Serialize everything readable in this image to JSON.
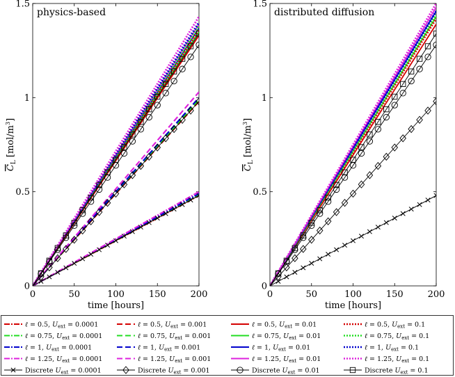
{
  "chart_data": {
    "type": "line",
    "x_range": [
      0,
      200
    ],
    "y_range": [
      0,
      1.5
    ],
    "x_ticks": [
      0,
      50,
      100,
      150,
      200
    ],
    "y_ticks": [
      0,
      0.5,
      1,
      1.5
    ],
    "x_tick_labels": [
      "0",
      "50",
      "100",
      "150",
      "200"
    ],
    "y_tick_labels": [
      "0",
      "0.5",
      "1",
      "1.5"
    ],
    "xlabel": "time [hours]",
    "ylabel_main": "C",
    "ylabel_sub": "L",
    "ylabel_unit_pre": " [mol/m",
    "ylabel_unit_sup": "3",
    "ylabel_unit_post": "]",
    "panels": [
      {
        "title": "physics-based",
        "final_values": {
          "0.0001": [
            0.48,
            0.485,
            0.49,
            0.5
          ],
          "0.001": [
            0.98,
            0.99,
            1.0,
            1.03
          ],
          "0.01": [
            1.33,
            1.35,
            1.37,
            1.39
          ],
          "0.1": [
            1.36,
            1.38,
            1.4,
            1.43
          ]
        },
        "discrete_final": {
          "0.0001": 0.48,
          "0.001": 0.98,
          "0.01": 1.28,
          "0.1": 1.34
        }
      },
      {
        "title": "distributed diffusion",
        "final_values": {
          "0.01": [
            1.39,
            1.43,
            1.46,
            1.48
          ],
          "0.1": [
            1.42,
            1.44,
            1.46,
            1.5
          ]
        },
        "discrete_final": {
          "0.0001": 0.48,
          "0.001": 0.98,
          "0.01": 1.28,
          "0.1": 1.34
        }
      }
    ],
    "colors": [
      "#d40000",
      "#22dd22",
      "#0000cc",
      "#dd22dd"
    ],
    "legend": {
      "rows": [
        [
          {
            "l": "0.5",
            "u": "0.0001",
            "color": "#d40000",
            "dash": "8,2,2,2",
            "marker": null
          },
          {
            "l": "0.5",
            "u": "0.001",
            "color": "#d40000",
            "dash": "8,4",
            "marker": null
          },
          {
            "l": "0.5",
            "u": "0.01",
            "color": "#d40000",
            "dash": "",
            "marker": null
          },
          {
            "l": "0.5",
            "u": "0.1",
            "color": "#d40000",
            "dash": "2,2",
            "marker": null
          }
        ],
        [
          {
            "l": "0.75",
            "u": "0.0001",
            "color": "#22dd22",
            "dash": "8,2,2,2",
            "marker": null
          },
          {
            "l": "0.75",
            "u": "0.001",
            "color": "#22dd22",
            "dash": "8,4",
            "marker": null
          },
          {
            "l": "0.75",
            "u": "0.01",
            "color": "#22dd22",
            "dash": "",
            "marker": null
          },
          {
            "l": "0.75",
            "u": "0.1",
            "color": "#22dd22",
            "dash": "2,2",
            "marker": null
          }
        ],
        [
          {
            "l": "1",
            "u": "0.0001",
            "color": "#0000cc",
            "dash": "8,2,2,2",
            "marker": null
          },
          {
            "l": "1",
            "u": "0.001",
            "color": "#0000cc",
            "dash": "8,4",
            "marker": null
          },
          {
            "l": "1",
            "u": "0.01",
            "color": "#0000cc",
            "dash": "",
            "marker": null
          },
          {
            "l": "1",
            "u": "0.1",
            "color": "#0000cc",
            "dash": "2,2",
            "marker": null
          }
        ],
        [
          {
            "l": "1.25",
            "u": "0.0001",
            "color": "#dd22dd",
            "dash": "8,2,2,2",
            "marker": null
          },
          {
            "l": "1.25",
            "u": "0.001",
            "color": "#dd22dd",
            "dash": "8,4",
            "marker": null
          },
          {
            "l": "1.25",
            "u": "0.01",
            "color": "#dd22dd",
            "dash": "",
            "marker": null
          },
          {
            "l": "1.25",
            "u": "0.1",
            "color": "#dd22dd",
            "dash": "2,2",
            "marker": null
          }
        ],
        [
          {
            "discrete": true,
            "u": "0.0001",
            "color": "#000000",
            "dash": "",
            "marker": "x"
          },
          {
            "discrete": true,
            "u": "0.001",
            "color": "#000000",
            "dash": "",
            "marker": "diamond"
          },
          {
            "discrete": true,
            "u": "0.01",
            "color": "#000000",
            "dash": "",
            "marker": "circle"
          },
          {
            "discrete": true,
            "u": "0.1",
            "color": "#000000",
            "dash": "",
            "marker": "square"
          }
        ]
      ],
      "ell_symbol": "ℓ",
      "eq_text": " = ",
      "u_symbol": "U",
      "u_sub": "ext",
      "discrete_prefix": "Discrete "
    }
  }
}
